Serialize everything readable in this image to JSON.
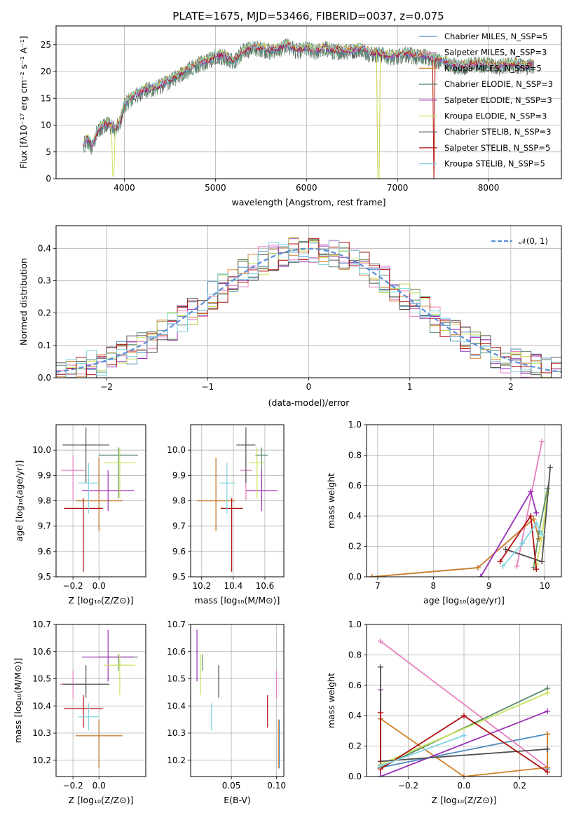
{
  "chart_data": [
    {
      "type": "line",
      "title": "PLATE=1675, MJD=53466, FIBERID=0037, z=0.075",
      "xlabel": "wavelength [Angstrom, rest frame]",
      "ylabel": "Flux [fλ10⁻¹⁷ erg cm⁻² s⁻¹ A⁻¹]",
      "xlim": [
        3250,
        8800
      ],
      "ylim": [
        0,
        28.5
      ],
      "xticks": [
        "4000",
        "5000",
        "6000",
        "7000",
        "8000"
      ],
      "yticks": [
        "0",
        "5",
        "10",
        "15",
        "20",
        "25"
      ],
      "legend_position": "right",
      "legend": [
        {
          "name": "Chabrier MILES, N_SSP=5",
          "color": "#4c8cbf"
        },
        {
          "name": "Salpeter MILES, N_SSP=3",
          "color": "#e87fbf"
        },
        {
          "name": "Kroupa MILES, N_SSP=5",
          "color": "#d4802a"
        },
        {
          "name": "Chabrier ELODIE, N_SSP=3",
          "color": "#5a8c6a"
        },
        {
          "name": "Salpeter ELODIE, N_SSP=3",
          "color": "#9b30b8"
        },
        {
          "name": "Kroupa ELODIE, N_SSP=3",
          "color": "#c8e35a"
        },
        {
          "name": "Chabrier STELIB, N_SSP=3",
          "color": "#505050"
        },
        {
          "name": "Salpeter STELIB, N_SSP=5",
          "color": "#b01010"
        },
        {
          "name": "Kroupa STELIB, N_SSP=5",
          "color": "#80d4e0"
        }
      ],
      "spectrum_knots": {
        "x": [
          3550,
          3600,
          3650,
          3700,
          3800,
          3900,
          3950,
          4000,
          4100,
          4200,
          4300,
          4400,
          4500,
          4600,
          4700,
          4800,
          4900,
          5000,
          5100,
          5200,
          5300,
          5400,
          5500,
          5600,
          5700,
          5800,
          5900,
          6000,
          6100,
          6200,
          6300,
          6400,
          6500,
          6600,
          6700,
          6800,
          6900,
          7000,
          7100,
          7200,
          7300,
          7400,
          7500,
          7600,
          7700,
          7800,
          7900,
          8000,
          8100,
          8200,
          8300,
          8400,
          8500
        ],
        "y": [
          6.5,
          7.5,
          6.0,
          9.0,
          10.5,
          9.5,
          10.5,
          14.0,
          15.5,
          16.5,
          17.0,
          17.5,
          18.5,
          19.5,
          20.5,
          21.5,
          22.0,
          23.0,
          23.0,
          22.0,
          24.0,
          24.5,
          24.5,
          24.0,
          24.5,
          25.0,
          24.0,
          24.5,
          24.0,
          24.5,
          24.0,
          24.0,
          24.0,
          24.5,
          23.5,
          23.5,
          23.0,
          23.0,
          23.5,
          23.0,
          23.0,
          22.5,
          22.0,
          21.5,
          21.0,
          21.5,
          21.5,
          21.5,
          21.0,
          21.5,
          21.5,
          21.0,
          21.5
        ]
      }
    },
    {
      "type": "line",
      "title": "",
      "xlabel": "(data-model)/error",
      "ylabel": "Normed distribution",
      "xlim": [
        -2.5,
        2.5
      ],
      "ylim": [
        0,
        0.47
      ],
      "xticks": [
        "−2",
        "−1",
        "0",
        "1",
        "2"
      ],
      "yticks": [
        "0.0",
        "0.1",
        "0.2",
        "0.3",
        "0.4"
      ],
      "legend_position": "upper right",
      "legend": [
        {
          "name": "𝒩(0, 1)",
          "color": "#5a8fd8"
        }
      ],
      "bin_width": 0.1,
      "histogram_series_count": 9
    },
    {
      "type": "scatter",
      "xlabel": "Z [log₁₀(Z/Z⊙)]",
      "ylabel": "age  [log₁₀(age/yr)]",
      "xlim": [
        -0.33,
        0.36
      ],
      "ylim": [
        9.5,
        10.1
      ],
      "xticks": [
        "−0.2",
        "0.0"
      ],
      "yticks": [
        "9.5",
        "9.6",
        "9.7",
        "9.8",
        "9.9",
        "10.0"
      ],
      "points": [
        {
          "series": "Chabrier MILES",
          "x": 0.0,
          "y": 9.8,
          "xerr": 0.18,
          "yerr": [
            0.12,
            0.17
          ]
        },
        {
          "series": "Salpeter MILES",
          "x": -0.2,
          "y": 9.92,
          "xerr": 0.09,
          "yerr": [
            0.12,
            0.06
          ]
        },
        {
          "series": "Kroupa MILES",
          "x": 0.0,
          "y": 9.8,
          "xerr": 0.18,
          "yerr": [
            0.12,
            0.17
          ]
        },
        {
          "series": "Chabrier ELODIE",
          "x": 0.15,
          "y": 9.98,
          "xerr": 0.15,
          "yerr": [
            0.17,
            0.03
          ]
        },
        {
          "series": "Salpeter ELODIE",
          "x": 0.07,
          "y": 9.84,
          "xerr": 0.2,
          "yerr": [
            0.08,
            0.08
          ]
        },
        {
          "series": "Kroupa ELODIE",
          "x": 0.16,
          "y": 9.95,
          "xerr": 0.12,
          "yerr": [
            0.14,
            0.06
          ]
        },
        {
          "series": "Chabrier STELIB",
          "x": -0.1,
          "y": 10.02,
          "xerr": 0.18,
          "yerr": [
            0.15,
            0.07
          ]
        },
        {
          "series": "Salpeter STELIB",
          "x": -0.12,
          "y": 9.77,
          "xerr": 0.15,
          "yerr": [
            0.25,
            0.04
          ]
        },
        {
          "series": "Kroupa STELIB",
          "x": -0.08,
          "y": 9.87,
          "xerr": 0.08,
          "yerr": [
            0.12,
            0.08
          ]
        }
      ]
    },
    {
      "type": "scatter",
      "xlabel": "mass [log₁₀(M/M⊙)]",
      "ylabel": "",
      "xlim": [
        10.13,
        10.72
      ],
      "ylim": [
        9.5,
        10.1
      ],
      "xticks": [
        "10.2",
        "10.4",
        "10.6"
      ],
      "yticks": [
        "9.5",
        "9.6",
        "9.7",
        "9.8",
        "9.9",
        "10.0"
      ],
      "points": [
        {
          "series": "Chabrier MILES",
          "x": 10.29,
          "y": 9.8,
          "xerr": 0.12,
          "yerr": [
            0.12,
            0.17
          ]
        },
        {
          "series": "Salpeter MILES",
          "x": 10.48,
          "y": 9.92,
          "xerr": 0.04,
          "yerr": [
            0.12,
            0.06
          ]
        },
        {
          "series": "Kroupa MILES",
          "x": 10.29,
          "y": 9.8,
          "xerr": 0.12,
          "yerr": [
            0.12,
            0.17
          ]
        },
        {
          "series": "Chabrier ELODIE",
          "x": 10.58,
          "y": 9.98,
          "xerr": 0.04,
          "yerr": [
            0.17,
            0.03
          ]
        },
        {
          "series": "Salpeter ELODIE",
          "x": 10.58,
          "y": 9.84,
          "xerr": 0.1,
          "yerr": [
            0.08,
            0.08
          ]
        },
        {
          "series": "Kroupa ELODIE",
          "x": 10.55,
          "y": 9.95,
          "xerr": 0.05,
          "yerr": [
            0.14,
            0.06
          ]
        },
        {
          "series": "Chabrier STELIB",
          "x": 10.48,
          "y": 10.02,
          "xerr": 0.06,
          "yerr": [
            0.15,
            0.07
          ]
        },
        {
          "series": "Salpeter STELIB",
          "x": 10.39,
          "y": 9.77,
          "xerr": 0.07,
          "yerr": [
            0.25,
            0.04
          ]
        },
        {
          "series": "Kroupa STELIB",
          "x": 10.36,
          "y": 9.87,
          "xerr": 0.05,
          "yerr": [
            0.12,
            0.08
          ]
        }
      ]
    },
    {
      "type": "line",
      "xlabel": "age  [log₁₀(age/yr)]",
      "ylabel": "mass weight",
      "xlim": [
        6.8,
        10.3
      ],
      "ylim": [
        0,
        1.0
      ],
      "xticks": [
        "7",
        "8",
        "9",
        "10"
      ],
      "yticks": [
        "0.0",
        "0.2",
        "0.4",
        "0.6",
        "0.8",
        "1.0"
      ],
      "series": [
        {
          "name": "Chabrier MILES",
          "x": [
            6.9,
            8.8,
            9.8,
            9.9
          ],
          "y": [
            0.0,
            0.06,
            0.38,
            0.25
          ]
        },
        {
          "name": "Salpeter MILES",
          "x": [
            9.5,
            9.95
          ],
          "y": [
            0.07,
            0.89
          ]
        },
        {
          "name": "Kroupa MILES",
          "x": [
            6.9,
            8.8,
            9.8,
            9.9
          ],
          "y": [
            0.0,
            0.06,
            0.38,
            0.25
          ]
        },
        {
          "name": "Chabrier ELODIE",
          "x": [
            9.8,
            9.9,
            10.05
          ],
          "y": [
            0.06,
            0.3,
            0.58
          ]
        },
        {
          "name": "Salpeter ELODIE",
          "x": [
            8.85,
            9.75,
            9.85
          ],
          "y": [
            0.0,
            0.56,
            0.42
          ]
        },
        {
          "name": "Kroupa ELODIE",
          "x": [
            9.85,
            9.95,
            10.05
          ],
          "y": [
            0.08,
            0.26,
            0.55
          ]
        },
        {
          "name": "Chabrier STELIB",
          "x": [
            9.3,
            9.95,
            10.1
          ],
          "y": [
            0.18,
            0.1,
            0.72
          ]
        },
        {
          "name": "Salpeter STELIB",
          "x": [
            9.2,
            9.75,
            9.85
          ],
          "y": [
            0.1,
            0.4,
            0.05
          ]
        },
        {
          "name": "Kroupa STELIB",
          "x": [
            9.25,
            9.6,
            9.85,
            9.95
          ],
          "y": [
            0.07,
            0.22,
            0.35,
            0.28
          ]
        }
      ]
    },
    {
      "type": "scatter",
      "xlabel": "Z [log₁₀(Z/Z⊙)]",
      "ylabel": "mass [log₁₀(M/M⊙)]",
      "xlim": [
        -0.33,
        0.36
      ],
      "ylim": [
        10.14,
        10.7
      ],
      "xticks": [
        "−0.2",
        "0.0"
      ],
      "yticks": [
        "10.2",
        "10.3",
        "10.4",
        "10.5",
        "10.6",
        "10.7"
      ],
      "points": [
        {
          "series": "Chabrier MILES",
          "x": 0.0,
          "y": 10.29,
          "xerr": 0.18,
          "yerr": [
            0.12,
            0.06
          ]
        },
        {
          "series": "Salpeter MILES",
          "x": -0.2,
          "y": 10.48,
          "xerr": 0.1,
          "yerr": [
            0.05,
            0.05
          ]
        },
        {
          "series": "Kroupa MILES",
          "x": 0.0,
          "y": 10.29,
          "xerr": 0.18,
          "yerr": [
            0.12,
            0.06
          ]
        },
        {
          "series": "Chabrier ELODIE",
          "x": 0.15,
          "y": 10.58,
          "xerr": 0.15,
          "yerr": [
            0.05,
            0.01
          ]
        },
        {
          "series": "Salpeter ELODIE",
          "x": 0.07,
          "y": 10.58,
          "xerr": 0.2,
          "yerr": [
            0.09,
            0.1
          ]
        },
        {
          "series": "Kroupa ELODIE",
          "x": 0.16,
          "y": 10.55,
          "xerr": 0.12,
          "yerr": [
            0.11,
            0.04
          ]
        },
        {
          "series": "Chabrier STELIB",
          "x": -0.1,
          "y": 10.48,
          "xerr": 0.18,
          "yerr": [
            0.05,
            0.07
          ]
        },
        {
          "series": "Salpeter STELIB",
          "x": -0.12,
          "y": 10.39,
          "xerr": 0.15,
          "yerr": [
            0.07,
            0.05
          ]
        },
        {
          "series": "Kroupa STELIB",
          "x": -0.08,
          "y": 10.36,
          "xerr": 0.08,
          "yerr": [
            0.05,
            0.05
          ]
        }
      ]
    },
    {
      "type": "scatter",
      "xlabel": "E(B-V)",
      "ylabel": "",
      "xlim": [
        0.005,
        0.108
      ],
      "ylim": [
        10.14,
        10.7
      ],
      "xticks": [
        "0.05",
        "0.10"
      ],
      "yticks": [
        "10.2",
        "10.3",
        "10.4",
        "10.5",
        "10.6",
        "10.7"
      ],
      "points": [
        {
          "series": "Chabrier MILES",
          "x": 0.103,
          "y": 10.29,
          "yerr": [
            0.12,
            0.06
          ]
        },
        {
          "series": "Salpeter MILES",
          "x": 0.1,
          "y": 10.48,
          "yerr": [
            0.05,
            0.05
          ]
        },
        {
          "series": "Kroupa MILES",
          "x": 0.102,
          "y": 10.29,
          "yerr": [
            0.12,
            0.06
          ]
        },
        {
          "series": "Chabrier ELODIE",
          "x": 0.018,
          "y": 10.58,
          "yerr": [
            0.05,
            0.01
          ]
        },
        {
          "series": "Salpeter ELODIE",
          "x": 0.012,
          "y": 10.58,
          "yerr": [
            0.09,
            0.1
          ]
        },
        {
          "series": "Kroupa ELODIE",
          "x": 0.016,
          "y": 10.55,
          "yerr": [
            0.11,
            0.04
          ]
        },
        {
          "series": "Chabrier STELIB",
          "x": 0.036,
          "y": 10.48,
          "yerr": [
            0.05,
            0.07
          ]
        },
        {
          "series": "Salpeter STELIB",
          "x": 0.09,
          "y": 10.39,
          "yerr": [
            0.07,
            0.05
          ]
        },
        {
          "series": "Kroupa STELIB",
          "x": 0.028,
          "y": 10.36,
          "yerr": [
            0.05,
            0.05
          ]
        }
      ]
    },
    {
      "type": "line",
      "xlabel": "Z [log₁₀(Z/Z⊙)]",
      "ylabel": "mass weight",
      "xlim": [
        -0.35,
        0.35
      ],
      "ylim": [
        0,
        1.0
      ],
      "xticks": [
        "−0.2",
        "0.0",
        "0.2"
      ],
      "yticks": [
        "0.0",
        "0.2",
        "0.4",
        "0.6",
        "0.8",
        "1.0"
      ],
      "series": [
        {
          "name": "Chabrier MILES",
          "x": [
            -0.3,
            -0.3,
            0.3,
            0.3
          ],
          "y": [
            0.38,
            0.06,
            0.28,
            0.05
          ]
        },
        {
          "name": "Salpeter MILES",
          "x": [
            -0.3,
            0.3
          ],
          "y": [
            0.89,
            0.06
          ]
        },
        {
          "name": "Kroupa MILES",
          "x": [
            -0.3,
            0.0,
            0.3,
            0.3
          ],
          "y": [
            0.38,
            0.0,
            0.06,
            0.28
          ]
        },
        {
          "name": "Chabrier ELODIE",
          "x": [
            -0.3,
            0.3
          ],
          "y": [
            0.06,
            0.58
          ]
        },
        {
          "name": "Salpeter ELODIE",
          "x": [
            -0.3,
            -0.3,
            0.3
          ],
          "y": [
            0.57,
            0.0,
            0.43
          ]
        },
        {
          "name": "Kroupa ELODIE",
          "x": [
            -0.3,
            0.3
          ],
          "y": [
            0.08,
            0.55
          ]
        },
        {
          "name": "Chabrier STELIB",
          "x": [
            -0.3,
            -0.3,
            0.3
          ],
          "y": [
            0.72,
            0.1,
            0.18
          ]
        },
        {
          "name": "Salpeter STELIB",
          "x": [
            -0.3,
            -0.3,
            0.0,
            0.3
          ],
          "y": [
            0.42,
            0.05,
            0.4,
            0.03
          ]
        },
        {
          "name": "Kroupa STELIB",
          "x": [
            -0.3,
            0.0
          ],
          "y": [
            0.07,
            0.27
          ]
        }
      ]
    }
  ]
}
